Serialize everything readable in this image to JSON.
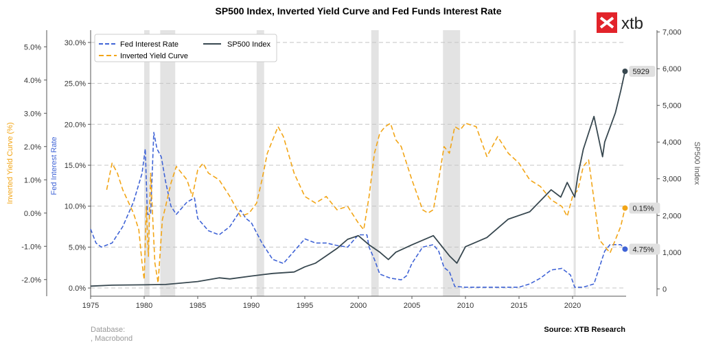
{
  "chart_data": {
    "type": "line",
    "title": "SP500 Index, Inverted Yield Curve and Fed Funds Interest Rate",
    "brand": "xtb",
    "xlabel": "",
    "x_ticks": [
      "1975",
      "1980",
      "1985",
      "1990",
      "1995",
      "2000",
      "2005",
      "2010",
      "2015",
      "2020"
    ],
    "xlim": [
      1975,
      2025
    ],
    "axes": {
      "left_outer": {
        "label": "Inverted Yield Curve (%)",
        "ticks": [
          "-2.0%",
          "-1.0%",
          "0.0%",
          "1.0%",
          "2.0%",
          "3.0%",
          "4.0%",
          "5.0%"
        ],
        "ylim": [
          -2.5,
          5.5
        ],
        "color": "#f2a516"
      },
      "left_inner": {
        "label": "Fed Interest Rate",
        "ticks": [
          "0.0%",
          "5.0%",
          "10.0%",
          "15.0%",
          "20.0%",
          "25.0%",
          "30.0%"
        ],
        "ylim": [
          -1,
          31.5
        ],
        "color": "#3f63d6"
      },
      "right": {
        "label": "SP500 Index",
        "ticks": [
          "0",
          "1,000",
          "2,000",
          "3,000",
          "4,000",
          "5,000",
          "6,000",
          "7,000"
        ],
        "ylim": [
          -200,
          7050
        ],
        "color": "#444444"
      }
    },
    "recessions": [
      [
        1980.0,
        1980.5
      ],
      [
        1981.5,
        1982.9
      ],
      [
        1990.5,
        1991.2
      ],
      [
        2001.2,
        2001.9
      ],
      [
        2007.9,
        2009.5
      ],
      [
        2020.1,
        2020.3
      ]
    ],
    "series": [
      {
        "name": "Fed Interest Rate",
        "axis": "left_inner",
        "color": "#3f63d6",
        "dash": "6,3",
        "x": [
          1975,
          1975.5,
          1976,
          1977,
          1978,
          1979,
          1979.8,
          1980.1,
          1980.3,
          1980.6,
          1980.9,
          1981.2,
          1981.6,
          1982,
          1982.5,
          1983,
          1984,
          1984.7,
          1985,
          1986,
          1987,
          1988,
          1989,
          1989.5,
          1990,
          1991,
          1992,
          1993,
          1994,
          1995,
          1996,
          1997,
          1998,
          1999,
          2000,
          2000.8,
          2001,
          2001.5,
          2002,
          2003,
          2004,
          2004.5,
          2005,
          2006,
          2007,
          2007.5,
          2008,
          2008.5,
          2009,
          2010,
          2015,
          2016,
          2017,
          2018,
          2019,
          2019.8,
          2020.2,
          2021,
          2022,
          2022.5,
          2023,
          2023.5,
          2024,
          2024.5,
          2024.9
        ],
        "values": [
          7.2,
          5.5,
          5.0,
          5.5,
          7.5,
          10.5,
          14,
          17,
          9,
          9,
          19,
          17,
          16,
          13,
          10,
          9,
          10.5,
          11,
          8.5,
          7,
          6.5,
          7.5,
          9.5,
          8.5,
          8,
          5.5,
          3.5,
          3,
          4.5,
          6,
          5.5,
          5.5,
          5.2,
          5,
          6.5,
          6.5,
          5,
          3.5,
          1.7,
          1.2,
          1,
          1.5,
          3,
          5,
          5.3,
          4.5,
          2.5,
          2,
          0.2,
          0.1,
          0.1,
          0.5,
          1.2,
          2.2,
          2.4,
          1.6,
          0.1,
          0.1,
          0.5,
          2.5,
          4.5,
          5.3,
          5.3,
          5.3,
          4.75
        ],
        "end_label": "4.75%"
      },
      {
        "name": "Inverted Yield Curve",
        "axis": "left_outer",
        "color": "#f2a516",
        "dash": "7,4",
        "x": [
          1976.5,
          1977,
          1977.5,
          1978,
          1979,
          1979.5,
          1979.8,
          1980,
          1980.2,
          1980.4,
          1980.6,
          1981,
          1981.3,
          1981.7,
          1982,
          1982.5,
          1983,
          1984,
          1984.5,
          1985,
          1985.5,
          1986,
          1987,
          1988,
          1989,
          1989.8,
          1990.5,
          1991,
          1991.5,
          1992,
          1992.5,
          1993,
          1994,
          1995,
          1996,
          1997,
          1998,
          1999,
          2000,
          2000.5,
          2001,
          2001.5,
          2002,
          2002.5,
          2003,
          2003.5,
          2004,
          2005,
          2006,
          2006.5,
          2007,
          2007.5,
          2008,
          2008.5,
          2009,
          2009.5,
          2010,
          2011,
          2012,
          2013,
          2014,
          2015,
          2016,
          2017,
          2018,
          2019,
          2019.5,
          2020,
          2020.5,
          2021,
          2021.5,
          2022,
          2022.5,
          2023,
          2023.5,
          2024,
          2024.5,
          2024.9
        ],
        "values": [
          0.7,
          1.5,
          1.2,
          0.7,
          0,
          -0.5,
          -1.5,
          -2.0,
          0.2,
          -1.3,
          1.2,
          -1.5,
          -2.1,
          -0.2,
          0.2,
          0.9,
          1.4,
          1.0,
          0.5,
          1.3,
          1.5,
          1.2,
          1.0,
          0.5,
          -0.1,
          0,
          0.3,
          1.0,
          1.8,
          2.2,
          2.6,
          2.3,
          1.2,
          0.5,
          0.3,
          0.5,
          0.1,
          0.2,
          -0.3,
          -0.5,
          0.5,
          1.8,
          2.4,
          2.6,
          2.7,
          2.2,
          2.0,
          1.0,
          0.1,
          0,
          0.1,
          1.0,
          2.0,
          1.8,
          2.6,
          2.5,
          2.7,
          2.6,
          1.7,
          2.3,
          1.8,
          1.5,
          1.0,
          0.8,
          0.4,
          0.2,
          -0.1,
          0.5,
          0.7,
          1.4,
          1.6,
          0.4,
          -0.8,
          -1.0,
          -1.2,
          -0.8,
          -0.4,
          0.15
        ],
        "end_label": "0.15%"
      },
      {
        "name": "SP500 Index",
        "axis": "right",
        "color": "#37474f",
        "dash": "",
        "x": [
          1975,
          1977,
          1980,
          1982,
          1985,
          1987,
          1988,
          1990,
          1992,
          1994,
          1995,
          1996,
          1997,
          1998,
          1999,
          2000,
          2001,
          2002,
          2002.8,
          2003.5,
          2005,
          2007,
          2008.5,
          2009.2,
          2010,
          2012,
          2014,
          2016,
          2018,
          2018.9,
          2019.5,
          2020.2,
          2020.5,
          2021,
          2022,
          2022.8,
          2023,
          2023.5,
          2024,
          2024.5,
          2024.9
        ],
        "values": [
          75,
          100,
          110,
          120,
          200,
          300,
          270,
          350,
          420,
          460,
          600,
          700,
          900,
          1100,
          1350,
          1450,
          1200,
          1000,
          800,
          1000,
          1200,
          1450,
          900,
          700,
          1150,
          1400,
          1900,
          2100,
          2700,
          2500,
          2900,
          2500,
          3100,
          3800,
          4700,
          3600,
          4000,
          4400,
          4800,
          5400,
          5929
        ],
        "end_label": "5929"
      }
    ],
    "legend": [
      "Fed Interest Rate",
      "Inverted Yield Curve",
      "SP500 Index"
    ],
    "legend_position": "top-left",
    "footer_source": "Source: XTB Research",
    "footer_database": "Database:\n, Macrobond"
  }
}
